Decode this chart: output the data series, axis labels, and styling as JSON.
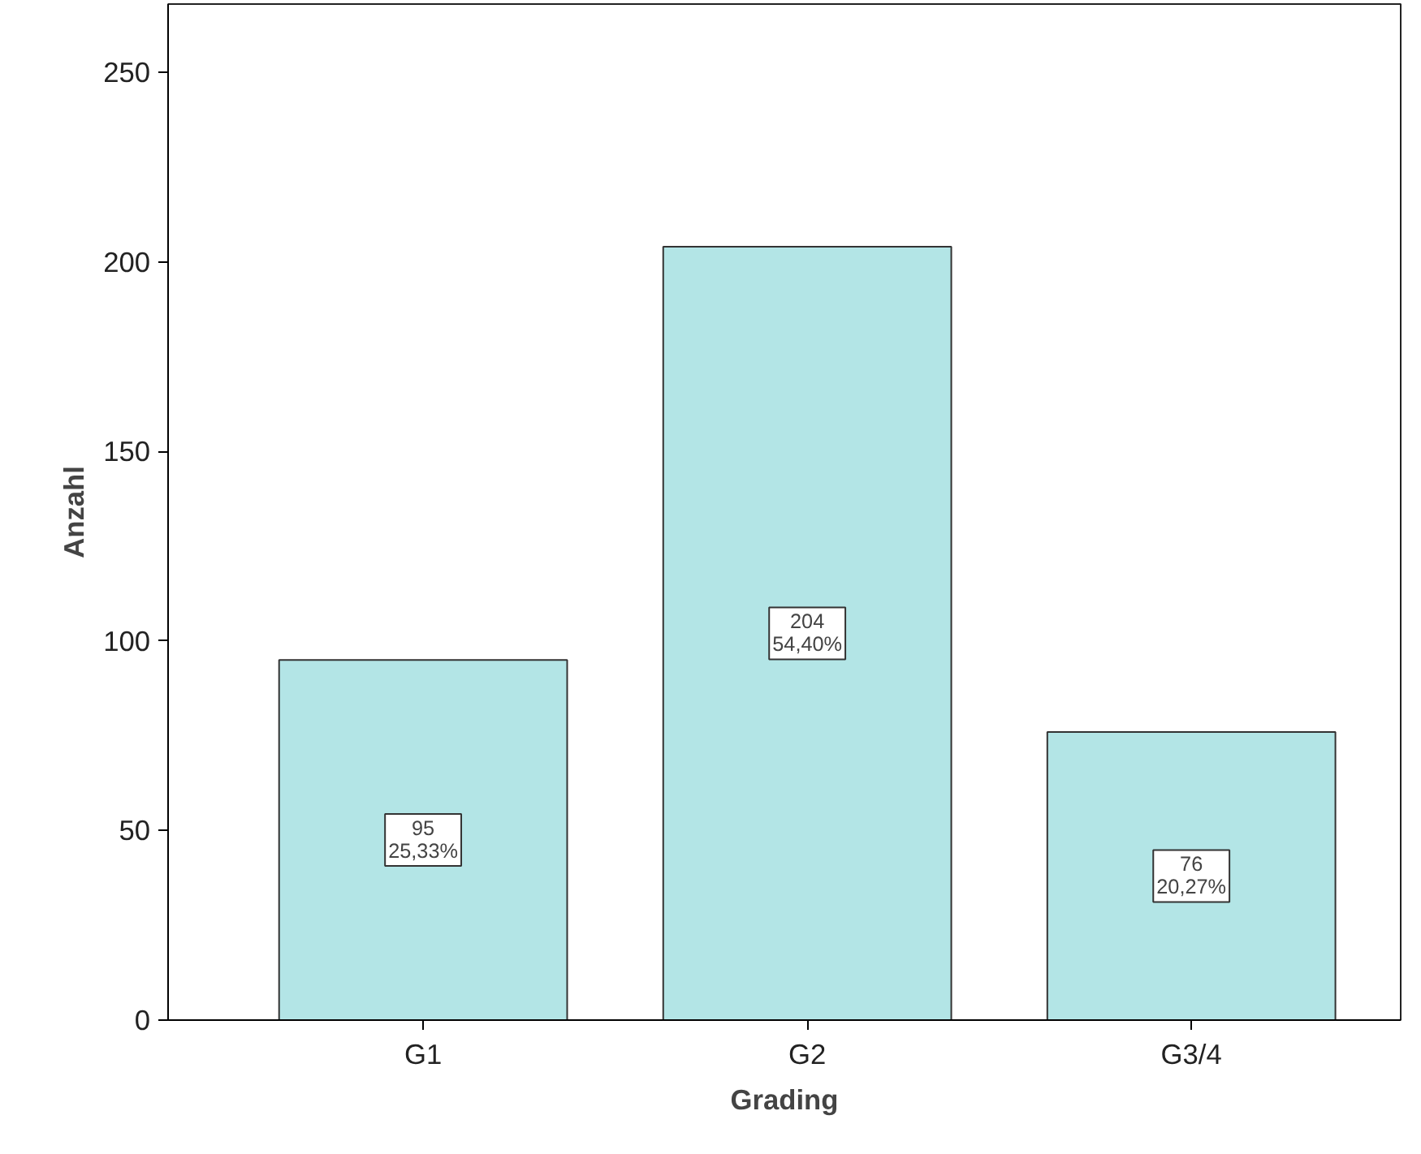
{
  "chart_data": {
    "type": "bar",
    "xlabel": "Grading",
    "ylabel": "Anzahl",
    "categories": [
      "G1",
      "G2",
      "G3/4"
    ],
    "values": [
      95,
      204,
      76
    ],
    "color": "#b3e5e6",
    "value_labels": [
      "95\n25,33%",
      "204\n54,40%",
      "76\n20,27%"
    ],
    "ylim": [
      0,
      268
    ],
    "yticks": [
      0,
      50,
      100,
      150,
      200,
      250
    ],
    "grid": false
  }
}
